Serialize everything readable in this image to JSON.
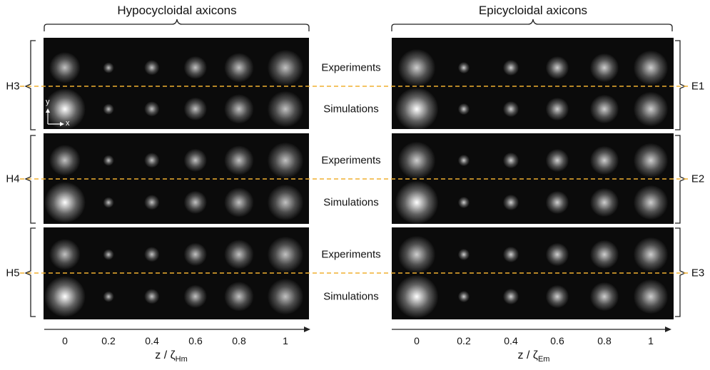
{
  "titles": {
    "left": "Hypocycloidal axicons",
    "right": "Epicycloidal axicons"
  },
  "row_labels": {
    "experiments": "Experiments",
    "simulations": "Simulations"
  },
  "groups_left": [
    "H3",
    "H4",
    "H5"
  ],
  "groups_right": [
    "E1",
    "E2",
    "E3"
  ],
  "axis_left": {
    "ticks": [
      "0",
      "0.2",
      "0.4",
      "0.6",
      "0.8",
      "1"
    ],
    "label_main": "z / ζ",
    "label_sub": "Hm"
  },
  "axis_right": {
    "ticks": [
      "0",
      "0.2",
      "0.4",
      "0.6",
      "0.8",
      "1"
    ],
    "label_main": "z / ζ",
    "label_sub": "Em"
  },
  "inset_axes": {
    "y": "y",
    "x": "x"
  },
  "colors": {
    "divider": "#f0b030",
    "panel_bg": "#0b0b0b",
    "beam": "#ffffff"
  }
}
